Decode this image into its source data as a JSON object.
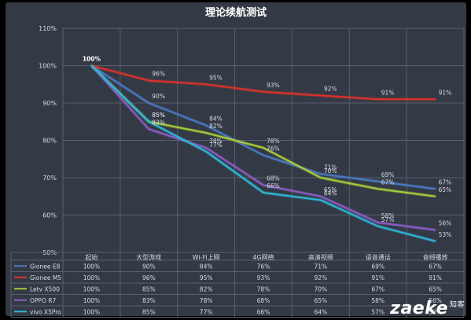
{
  "chart_data": {
    "type": "line",
    "title": "理论续航测试",
    "categories": [
      "起始",
      "大型游戏",
      "Wi-Fi上网",
      "4G网络",
      "高清视频",
      "语音通话",
      "音频播放"
    ],
    "ylim": [
      50,
      110
    ],
    "yticks": [
      50,
      60,
      70,
      80,
      90,
      100,
      110
    ],
    "grid": true,
    "legend": "table-below",
    "series": [
      {
        "name": "Gionee E8",
        "color": "#4a78c2",
        "values": [
          100,
          90,
          84,
          76,
          71,
          69,
          67
        ]
      },
      {
        "name": "Gionee M5",
        "color": "#d9322a",
        "values": [
          100,
          96,
          95,
          93,
          92,
          91,
          91
        ]
      },
      {
        "name": "Letv X500",
        "color": "#a6cc3a",
        "values": [
          100,
          85,
          82,
          78,
          70,
          67,
          65
        ]
      },
      {
        "name": "OPPO R7",
        "color": "#8a5cc4",
        "values": [
          100,
          83,
          78,
          68,
          65,
          58,
          56
        ]
      },
      {
        "name": "vivo X5Pro",
        "color": "#2eb6d6",
        "values": [
          100,
          85,
          77,
          66,
          64,
          57,
          53
        ]
      }
    ]
  },
  "watermark": {
    "text": "zaeke",
    "sub": "知客"
  }
}
